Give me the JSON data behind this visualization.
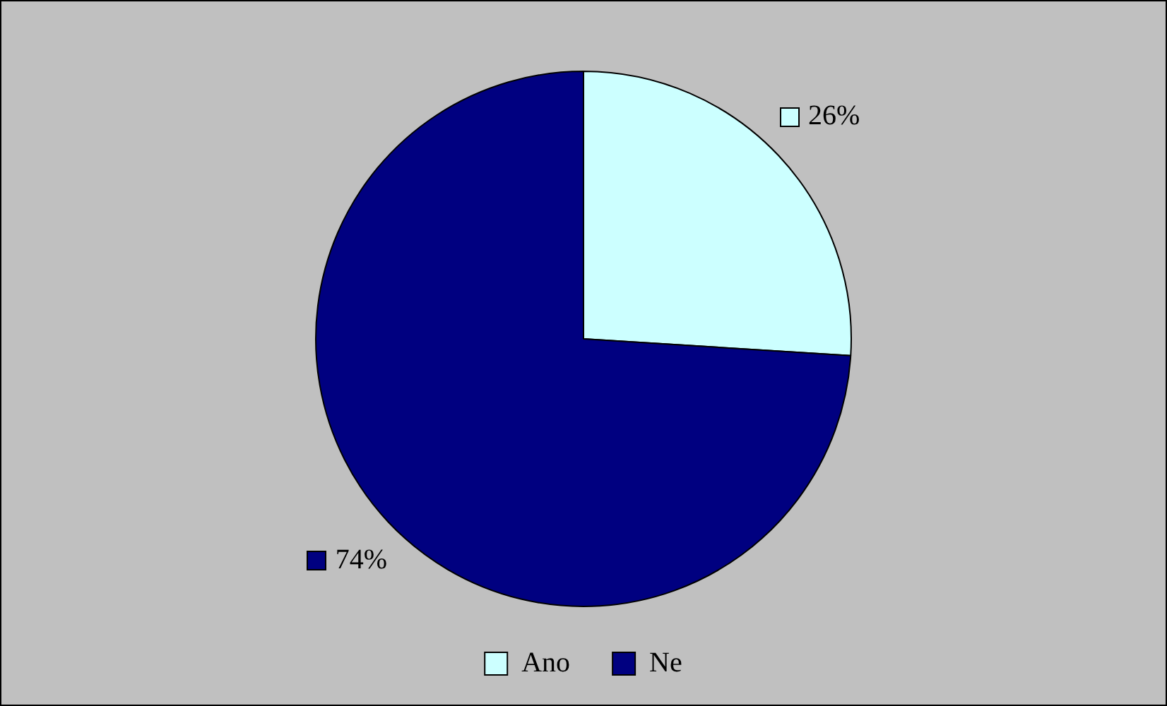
{
  "chart_data": {
    "type": "pie",
    "categories": [
      "Ano",
      "Ne"
    ],
    "values": [
      26,
      74
    ],
    "colors": [
      "#ccffff",
      "#000080"
    ],
    "value_labels": [
      "26%",
      "74%"
    ],
    "legend": "bottom"
  }
}
